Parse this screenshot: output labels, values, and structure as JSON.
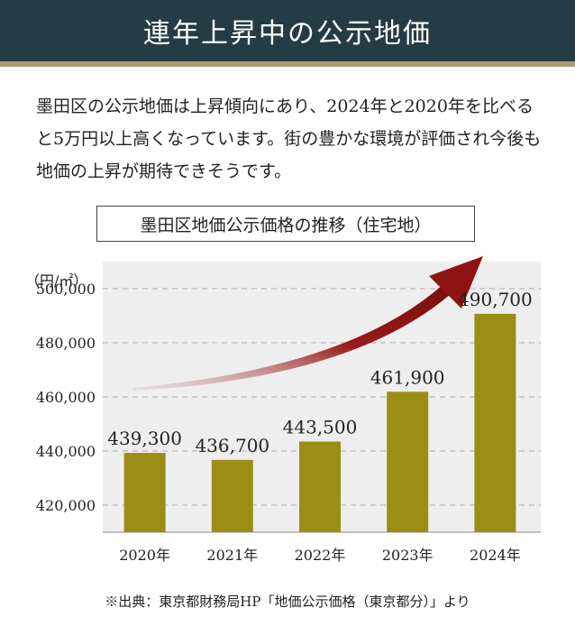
{
  "header": {
    "title": "連年上昇中の公示地価"
  },
  "intro": {
    "text": "墨田区の公示地価は上昇傾向にあり、2024年と2020年を比べると5万円以上高くなっています。街の豊かな環境が評価され今後も地価の上昇が期待できそうです。"
  },
  "chart_data": {
    "type": "bar",
    "title": "墨田区地価公示価格の推移（住宅地）",
    "ylabel": "（円/㎡）",
    "categories": [
      "2020年",
      "2021年",
      "2022年",
      "2023年",
      "2024年"
    ],
    "values": [
      439300,
      436700,
      443500,
      461900,
      490700
    ],
    "value_labels": [
      "439,300",
      "436,700",
      "443,500",
      "461,900",
      "490,700"
    ],
    "yticks": [
      420000,
      440000,
      460000,
      480000,
      500000
    ],
    "ytick_labels": [
      "420,000",
      "440,000",
      "460,000",
      "480,000",
      "500,000"
    ],
    "ylim": [
      410000,
      510000
    ],
    "grid": true,
    "bar_color": "#9c8d16",
    "arrow_color": "#8e1414"
  },
  "source": {
    "text": "※出典：東京都財務局HP「地価公示価格（東京都分）」より"
  }
}
